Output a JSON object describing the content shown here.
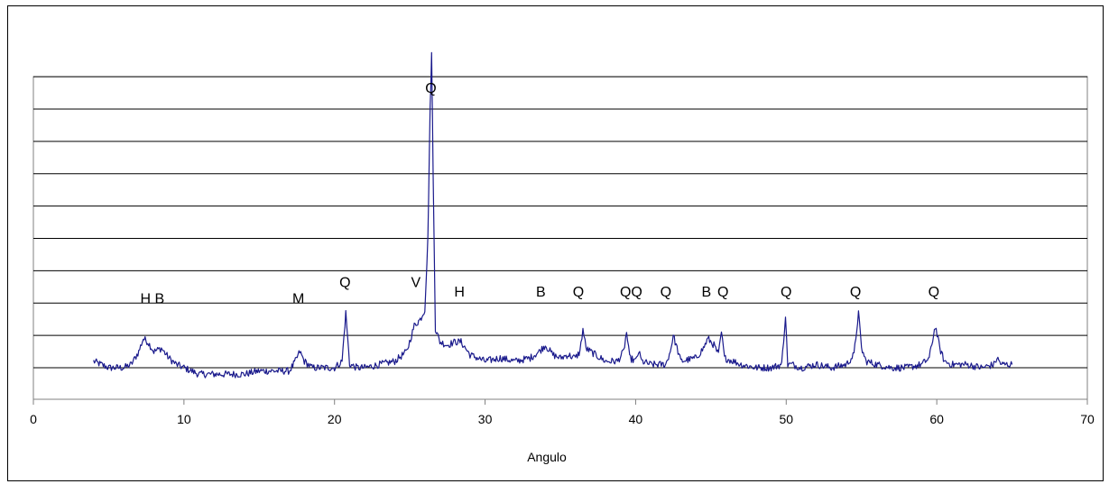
{
  "chart_data": {
    "type": "line",
    "title": "",
    "xlabel": "Angulo",
    "ylabel": "",
    "xlim": [
      0,
      70
    ],
    "ylim": [
      -10,
      100
    ],
    "x_ticks": [
      "0",
      "10",
      "20",
      "30",
      "40",
      "50",
      "60",
      "70"
    ],
    "y_gridlines": [
      0,
      10,
      20,
      30,
      40,
      50,
      60,
      70,
      80,
      90
    ],
    "grid": true,
    "legend": "none",
    "colors": {
      "line": "#1a1a8c",
      "grid": "#000000",
      "plot_bg": "#ffffff"
    },
    "series": [
      {
        "x": [
          4.0,
          5.0,
          6.0,
          6.5,
          7.0,
          7.3,
          7.6,
          8.0,
          8.5,
          9.0,
          9.5,
          10.0,
          11.0,
          12.0,
          13.0,
          14.0,
          15.0,
          16.0,
          17.0,
          17.4,
          17.7,
          18.0,
          18.5,
          19.0,
          20.0,
          20.5,
          20.75,
          21.0,
          21.5,
          22.0,
          23.0,
          24.0,
          24.8,
          25.3,
          25.7,
          26.0,
          26.2,
          26.35,
          26.45,
          26.55,
          26.7,
          27.0,
          27.5,
          28.0,
          28.4,
          29.0,
          30.0,
          31.0,
          32.0,
          33.0,
          33.6,
          34.0,
          34.5,
          35.0,
          35.5,
          36.0,
          36.3,
          36.5,
          36.7,
          37.0,
          38.0,
          38.8,
          39.2,
          39.4,
          39.6,
          40.0,
          40.2,
          40.4,
          41.0,
          42.0,
          42.3,
          42.5,
          43.0,
          44.0,
          44.5,
          44.8,
          45.2,
          45.5,
          45.7,
          45.9,
          46.5,
          47.0,
          48.0,
          49.0,
          49.7,
          49.95,
          50.1,
          50.4,
          51.0,
          52.0,
          53.0,
          54.0,
          54.5,
          54.8,
          55.0,
          55.3,
          56.0,
          57.0,
          58.0,
          59.0,
          59.5,
          59.9,
          60.2,
          60.5,
          61.0,
          62.0,
          63.0,
          63.8,
          64.0,
          64.3,
          65.0
        ],
        "y": [
          2,
          0,
          0,
          1,
          5,
          9,
          8,
          5,
          6,
          3,
          1,
          0,
          -2,
          -2,
          -2,
          -2,
          -1,
          -1,
          -1,
          2,
          5,
          2,
          0,
          0,
          0,
          2,
          17,
          1,
          0,
          0,
          1,
          2,
          5,
          13,
          15,
          18,
          40,
          80,
          97,
          60,
          12,
          8,
          7,
          8,
          8,
          4,
          2,
          3,
          2,
          3,
          5,
          7,
          4,
          3,
          4,
          3,
          5,
          12,
          6,
          5,
          2,
          2,
          5,
          11,
          3,
          2,
          5,
          2,
          1,
          1,
          5,
          10,
          2,
          3,
          6,
          9,
          7,
          4,
          11,
          3,
          2,
          1,
          0,
          0,
          1,
          16,
          1,
          1,
          0,
          1,
          0,
          1,
          4,
          17,
          6,
          2,
          1,
          0,
          0,
          1,
          3,
          13,
          6,
          2,
          1,
          1,
          0,
          1,
          3,
          1,
          1
        ]
      }
    ],
    "annotations": [
      {
        "text": "H B",
        "x": 7.9,
        "y": 20
      },
      {
        "text": "M",
        "x": 17.6,
        "y": 20
      },
      {
        "text": "Q",
        "x": 20.7,
        "y": 25
      },
      {
        "text": "V",
        "x": 25.4,
        "y": 25
      },
      {
        "text": "Q",
        "x": 26.4,
        "y": 85
      },
      {
        "text": "H",
        "x": 28.3,
        "y": 22
      },
      {
        "text": "B",
        "x": 33.7,
        "y": 22
      },
      {
        "text": "Q",
        "x": 36.2,
        "y": 22
      },
      {
        "text": "QQ",
        "x": 39.7,
        "y": 22
      },
      {
        "text": "Q",
        "x": 42.0,
        "y": 22
      },
      {
        "text": "B",
        "x": 44.7,
        "y": 22
      },
      {
        "text": "Q",
        "x": 45.8,
        "y": 22
      },
      {
        "text": "Q",
        "x": 50.0,
        "y": 22
      },
      {
        "text": "Q",
        "x": 54.6,
        "y": 22
      },
      {
        "text": "Q",
        "x": 59.8,
        "y": 22
      }
    ]
  }
}
